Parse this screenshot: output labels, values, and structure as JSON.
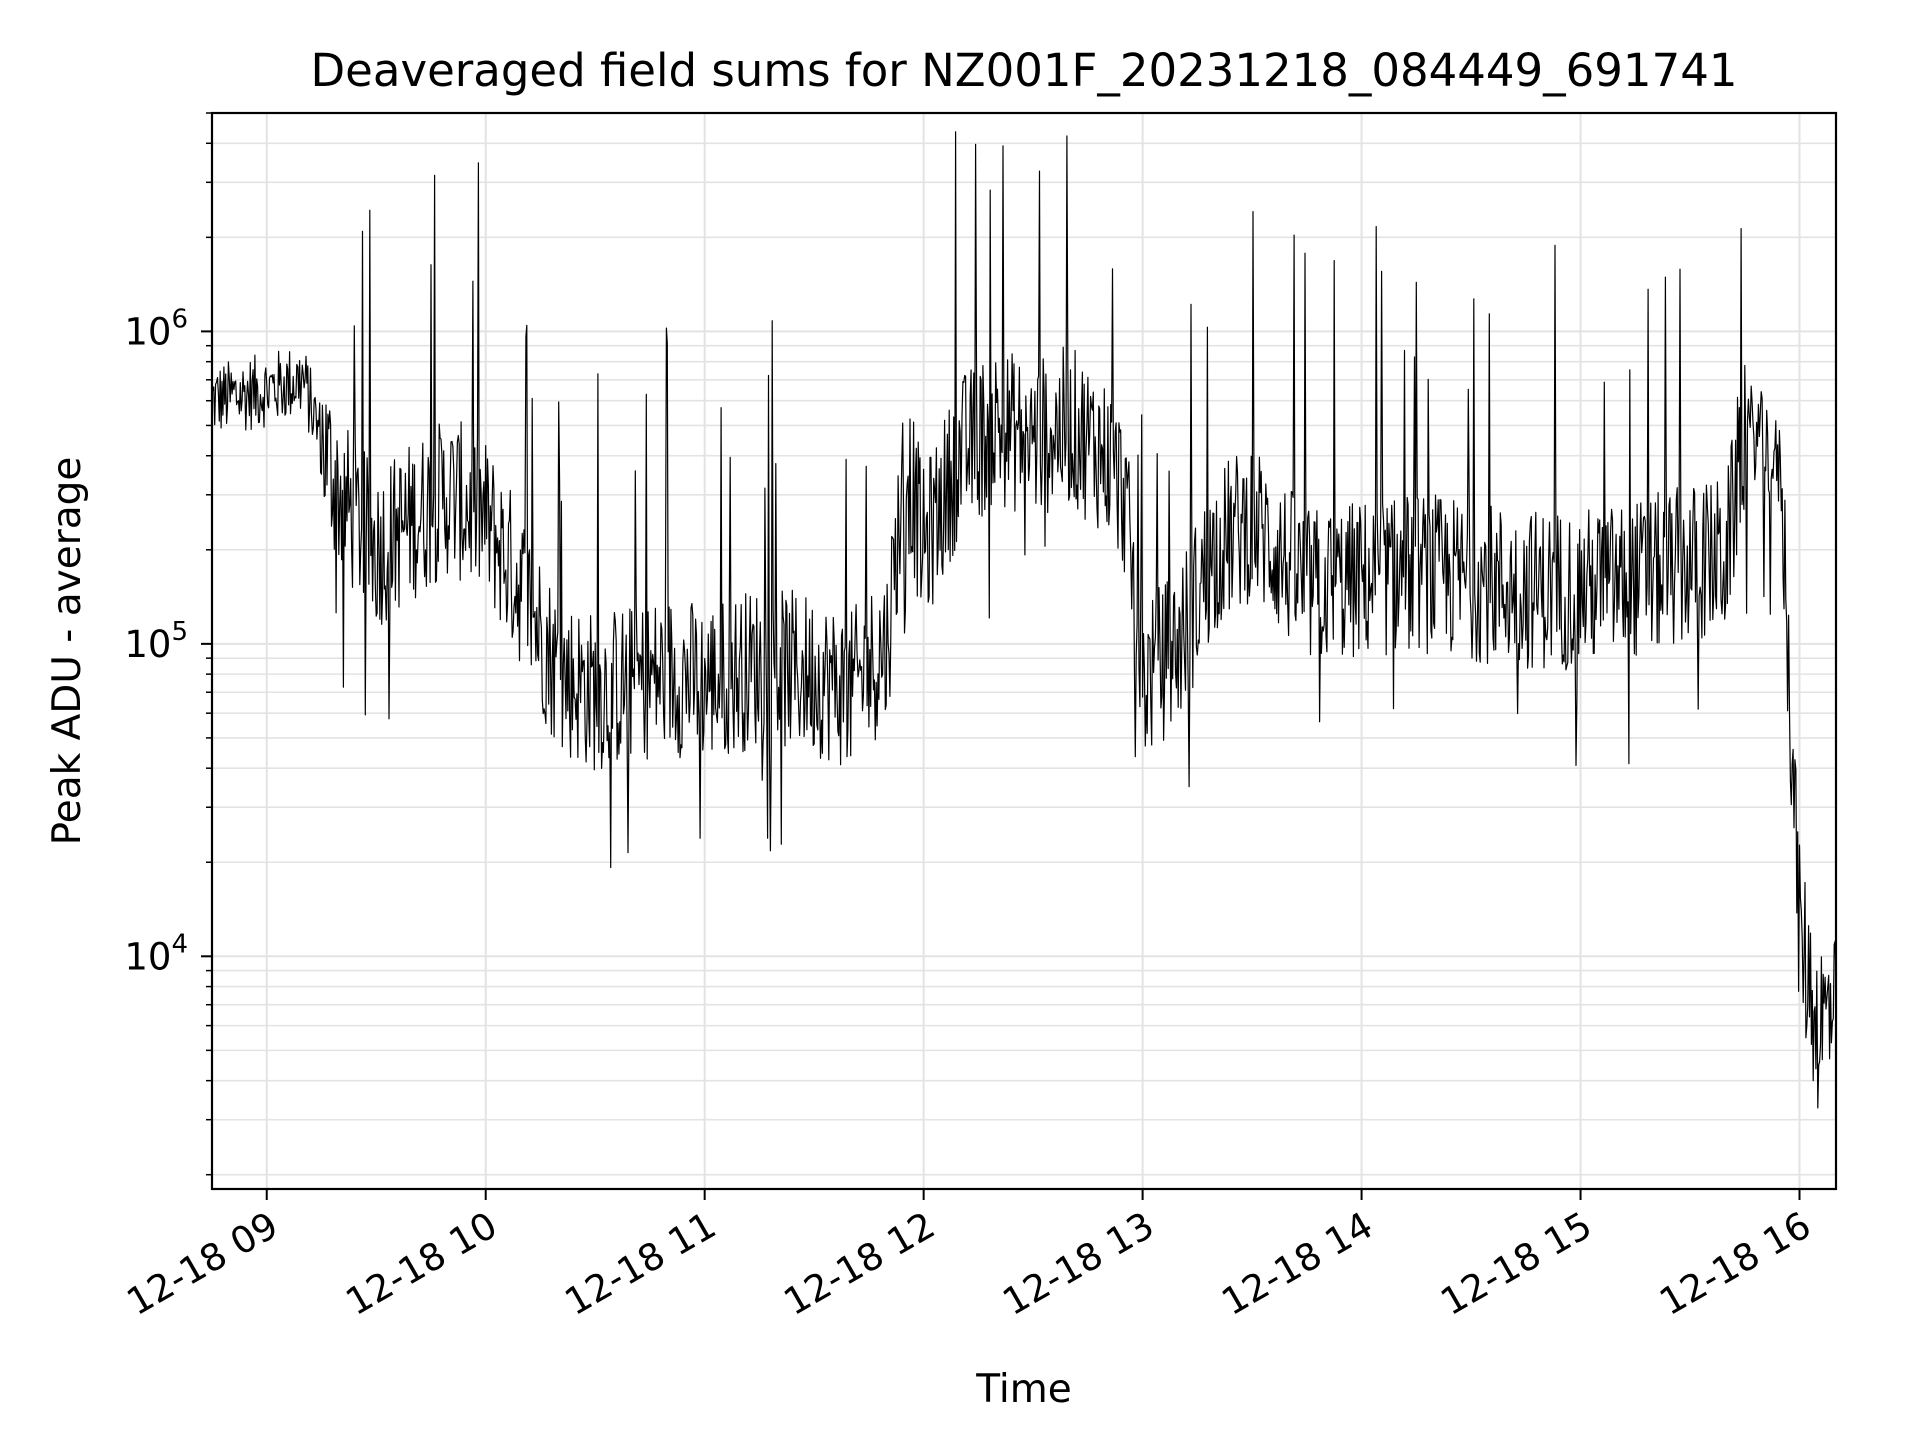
{
  "chart_data": {
    "type": "line",
    "title": "Deaveraged field sums for NZ001F_20231218_084449_691741",
    "xlabel": "Time",
    "ylabel": "Peak ADU - average",
    "yscale": "log",
    "ylim": [
      1800,
      5000000
    ],
    "xlim": [
      "2023-12-18 08:45",
      "2023-12-18 16:10"
    ],
    "grid": "major and minor",
    "line_color": "#000000",
    "grid_color": "#e3e3e3",
    "x_ticks": [
      "12-18 09",
      "12-18 10",
      "12-18 11",
      "12-18 12",
      "12-18 13",
      "12-18 14",
      "12-18 15",
      "12-18 16"
    ],
    "y_ticks": [
      {
        "base": "10",
        "exp": "4",
        "value": 10000
      },
      {
        "base": "10",
        "exp": "5",
        "value": 100000
      },
      {
        "base": "10",
        "exp": "6",
        "value": 1000000
      }
    ],
    "series": [
      {
        "x": [
          "2023-12-18 08:45",
          "2023-12-18 09:00",
          "2023-12-18 09:10",
          "2023-12-18 09:15",
          "2023-12-18 09:20",
          "2023-12-18 09:30",
          "2023-12-18 09:40",
          "2023-12-18 09:50",
          "2023-12-18 10:00",
          "2023-12-18 10:10",
          "2023-12-18 10:20",
          "2023-12-18 10:30",
          "2023-12-18 10:40",
          "2023-12-18 10:50",
          "2023-12-18 11:00",
          "2023-12-18 11:15",
          "2023-12-18 11:30",
          "2023-12-18 11:40",
          "2023-12-18 11:50",
          "2023-12-18 11:55",
          "2023-12-18 12:00",
          "2023-12-18 12:10",
          "2023-12-18 12:20",
          "2023-12-18 12:30",
          "2023-12-18 12:40",
          "2023-12-18 12:50",
          "2023-12-18 12:55",
          "2023-12-18 13:00",
          "2023-12-18 13:10",
          "2023-12-18 13:20",
          "2023-12-18 13:30",
          "2023-12-18 13:45",
          "2023-12-18 14:00",
          "2023-12-18 14:15",
          "2023-12-18 14:30",
          "2023-12-18 14:45",
          "2023-12-18 15:00",
          "2023-12-18 15:15",
          "2023-12-18 15:30",
          "2023-12-18 15:40",
          "2023-12-18 15:45",
          "2023-12-18 15:50",
          "2023-12-18 15:55",
          "2023-12-18 16:00",
          "2023-12-18 16:05",
          "2023-12-18 16:10"
        ],
        "y": [
          600000,
          650000,
          700000,
          450000,
          300000,
          200000,
          250000,
          300000,
          250000,
          150000,
          80000,
          70000,
          75000,
          80000,
          75000,
          85000,
          80000,
          70000,
          100000,
          400000,
          200000,
          400000,
          500000,
          450000,
          500000,
          400000,
          300000,
          75000,
          100000,
          200000,
          250000,
          150000,
          160000,
          170000,
          160000,
          150000,
          150000,
          160000,
          180000,
          190000,
          500000,
          450000,
          350000,
          12000,
          6000,
          7000
        ]
      }
    ]
  }
}
